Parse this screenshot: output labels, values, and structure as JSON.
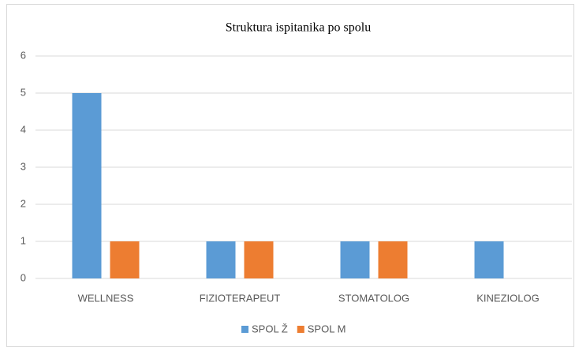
{
  "chart_data": {
    "type": "bar",
    "title": "Struktura ispitanika po spolu",
    "categories": [
      "WELLNESS",
      "FIZIOTERAPEUT",
      "STOMATOLOG",
      "KINEZIOLOG"
    ],
    "series": [
      {
        "name": "SPOL Ž",
        "color": "#5b9bd5",
        "values": [
          5,
          1,
          1,
          1
        ]
      },
      {
        "name": "SPOL M",
        "color": "#ed7d31",
        "values": [
          1,
          1,
          1,
          0
        ]
      }
    ],
    "ylim": [
      0,
      6
    ],
    "yticks": [
      0,
      1,
      2,
      3,
      4,
      5,
      6
    ],
    "grid": true,
    "legend": "bottom"
  }
}
